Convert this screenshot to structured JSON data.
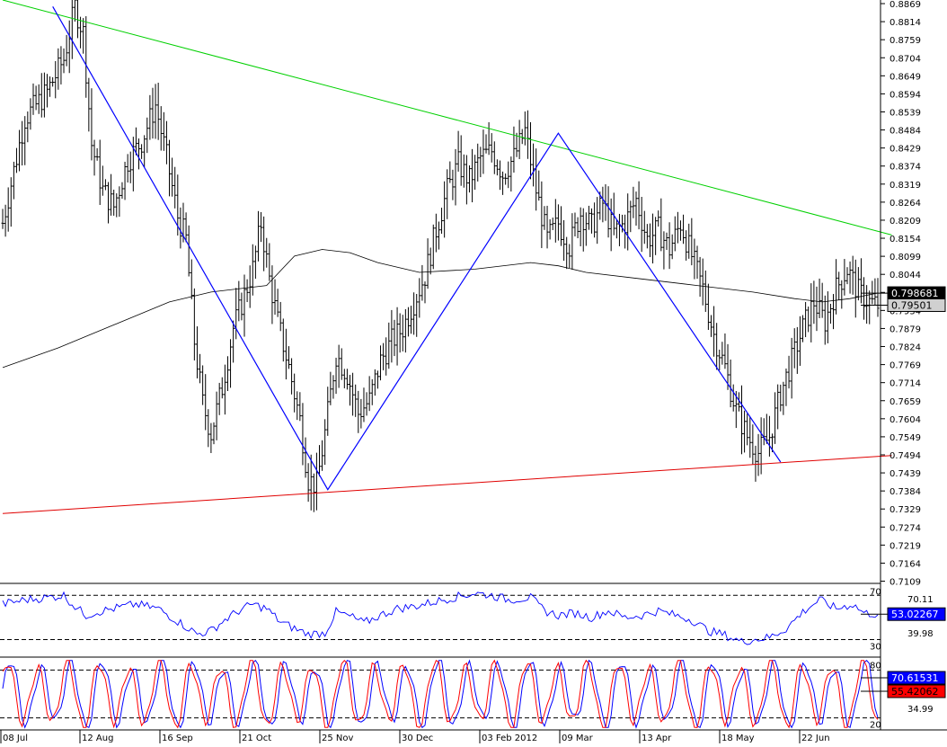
{
  "chart_data": [
    {
      "type": "ohlc",
      "panel": "price",
      "title": "",
      "x_dates": [
        "08 Jul",
        "12 Aug",
        "16 Sep",
        "21 Oct",
        "25 Nov",
        "30 Dec",
        "03 Feb 2012",
        "09 Mar",
        "13 Apr",
        "18 May",
        "22 Jun"
      ],
      "y_ticks": [
        "0.8869",
        "0.8814",
        "0.8759",
        "0.8704",
        "0.8649",
        "0.8594",
        "0.8539",
        "0.8484",
        "0.8429",
        "0.8374",
        "0.8319",
        "0.8264",
        "0.8209",
        "0.8154",
        "0.8099",
        "0.8044",
        "0.7989",
        "0.7934",
        "0.7879",
        "0.7824",
        "0.7769",
        "0.7714",
        "0.7659",
        "0.7604",
        "0.7549",
        "0.7494",
        "0.7439",
        "0.7384",
        "0.7329",
        "0.7274",
        "0.7219",
        "0.7164",
        "0.7109"
      ],
      "ylim": [
        0.7105,
        0.888
      ],
      "close_path": [
        [
          0,
          0.82
        ],
        [
          8,
          0.852
        ],
        [
          16,
          0.86
        ],
        [
          22,
          0.87
        ],
        [
          26,
          0.886
        ],
        [
          29,
          0.878
        ],
        [
          32,
          0.844
        ],
        [
          36,
          0.83
        ],
        [
          40,
          0.825
        ],
        [
          45,
          0.839
        ],
        [
          50,
          0.845
        ],
        [
          55,
          0.856
        ],
        [
          59,
          0.84
        ],
        [
          63,
          0.822
        ],
        [
          66,
          0.815
        ],
        [
          69,
          0.784
        ],
        [
          72,
          0.765
        ],
        [
          75,
          0.756
        ],
        [
          79,
          0.77
        ],
        [
          83,
          0.788
        ],
        [
          87,
          0.798
        ],
        [
          90,
          0.806
        ],
        [
          93,
          0.82
        ],
        [
          96,
          0.803
        ],
        [
          99,
          0.79
        ],
        [
          103,
          0.776
        ],
        [
          107,
          0.76
        ],
        [
          110,
          0.742
        ],
        [
          113,
          0.74
        ],
        [
          116,
          0.756
        ],
        [
          120,
          0.78
        ],
        [
          124,
          0.774
        ],
        [
          128,
          0.762
        ],
        [
          132,
          0.766
        ],
        [
          136,
          0.778
        ],
        [
          140,
          0.784
        ],
        [
          144,
          0.788
        ],
        [
          148,
          0.796
        ],
        [
          152,
          0.804
        ],
        [
          156,
          0.818
        ],
        [
          160,
          0.83
        ],
        [
          164,
          0.838
        ],
        [
          168,
          0.833
        ],
        [
          172,
          0.84
        ],
        [
          176,
          0.842
        ],
        [
          180,
          0.835
        ],
        [
          184,
          0.84
        ],
        [
          188,
          0.848
        ],
        [
          192,
          0.83
        ],
        [
          196,
          0.815
        ],
        [
          200,
          0.82
        ],
        [
          204,
          0.813
        ],
        [
          208,
          0.823
        ],
        [
          212,
          0.819
        ],
        [
          216,
          0.826
        ],
        [
          220,
          0.817
        ],
        [
          224,
          0.82
        ],
        [
          228,
          0.827
        ],
        [
          232,
          0.815
        ],
        [
          236,
          0.818
        ],
        [
          240,
          0.812
        ],
        [
          244,
          0.82
        ],
        [
          248,
          0.81
        ],
        [
          252,
          0.8
        ],
        [
          256,
          0.786
        ],
        [
          260,
          0.776
        ],
        [
          264,
          0.763
        ],
        [
          268,
          0.755
        ],
        [
          272,
          0.75
        ],
        [
          276,
          0.755
        ],
        [
          280,
          0.768
        ],
        [
          284,
          0.778
        ],
        [
          288,
          0.788
        ],
        [
          292,
          0.796
        ],
        [
          296,
          0.79
        ],
        [
          300,
          0.8
        ],
        [
          304,
          0.806
        ],
        [
          308,
          0.799
        ],
        [
          312,
          0.796
        ],
        [
          315,
          0.795
        ]
      ],
      "ma_path": [
        [
          0,
          0.776
        ],
        [
          20,
          0.782
        ],
        [
          40,
          0.789
        ],
        [
          60,
          0.796
        ],
        [
          75,
          0.799
        ],
        [
          95,
          0.801
        ],
        [
          105,
          0.81
        ],
        [
          115,
          0.812
        ],
        [
          125,
          0.811
        ],
        [
          135,
          0.808
        ],
        [
          150,
          0.805
        ],
        [
          170,
          0.806
        ],
        [
          190,
          0.808
        ],
        [
          200,
          0.807
        ],
        [
          210,
          0.805
        ],
        [
          230,
          0.803
        ],
        [
          250,
          0.801
        ],
        [
          270,
          0.799
        ],
        [
          285,
          0.797
        ],
        [
          295,
          0.796
        ],
        [
          305,
          0.797
        ],
        [
          315,
          0.7987
        ]
      ],
      "resistance_line": [
        [
          0,
          0.888
        ],
        [
          320,
          0.8164
        ]
      ],
      "support_line": [
        [
          0,
          0.7315
        ],
        [
          320,
          0.7492
        ]
      ],
      "zigzag": [
        [
          18,
          0.886
        ],
        [
          117,
          0.7388
        ],
        [
          200,
          0.8474
        ],
        [
          280,
          0.7472
        ]
      ],
      "n_bars": 316,
      "price_labels": [
        {
          "text": "0.798681",
          "value": 0.798681,
          "bg": "#000000",
          "color": "#ffffff"
        },
        {
          "text": "0.79501",
          "value": 0.79501,
          "bg": "#d0d0d0",
          "color": "#000000"
        }
      ],
      "colors": {
        "price": "#000000",
        "ma": "#000000",
        "resistance": "#00d000",
        "support": "#e00000",
        "zigzag": "#0000ff"
      }
    },
    {
      "type": "line",
      "panel": "rsi",
      "title": "",
      "levels": [
        {
          "value": 70,
          "label": "70"
        },
        {
          "value": 30,
          "label": "30"
        }
      ],
      "ylim": [
        15,
        80
      ],
      "extreme_labels": [
        "70.11",
        "39.98"
      ],
      "current_label": {
        "text": "53.02267",
        "value": 53.02267,
        "bg": "#0000ff",
        "color": "#ffffff"
      },
      "series": [
        {
          "color": "#0000ff",
          "points": [
            [
              0,
              62
            ],
            [
              8,
              66
            ],
            [
              16,
              68
            ],
            [
              22,
              70
            ],
            [
              26,
              60
            ],
            [
              30,
              52
            ],
            [
              34,
              55
            ],
            [
              40,
              58
            ],
            [
              48,
              62
            ],
            [
              56,
              58
            ],
            [
              64,
              45
            ],
            [
              70,
              35
            ],
            [
              75,
              38
            ],
            [
              80,
              48
            ],
            [
              85,
              56
            ],
            [
              90,
              62
            ],
            [
              95,
              58
            ],
            [
              100,
              46
            ],
            [
              105,
              40
            ],
            [
              110,
              35
            ],
            [
              116,
              36
            ],
            [
              120,
              55
            ],
            [
              126,
              50
            ],
            [
              130,
              45
            ],
            [
              136,
              52
            ],
            [
              142,
              58
            ],
            [
              148,
              60
            ],
            [
              155,
              64
            ],
            [
              162,
              68
            ],
            [
              170,
              72
            ],
            [
              176,
              70
            ],
            [
              182,
              66
            ],
            [
              190,
              68
            ],
            [
              195,
              56
            ],
            [
              200,
              52
            ],
            [
              206,
              54
            ],
            [
              212,
              50
            ],
            [
              218,
              56
            ],
            [
              224,
              50
            ],
            [
              230,
              52
            ],
            [
              236,
              56
            ],
            [
              242,
              52
            ],
            [
              248,
              48
            ],
            [
              254,
              38
            ],
            [
              260,
              34
            ],
            [
              266,
              28
            ],
            [
              270,
              30
            ],
            [
              276,
              32
            ],
            [
              282,
              40
            ],
            [
              288,
              55
            ],
            [
              294,
              66
            ],
            [
              300,
              58
            ],
            [
              306,
              62
            ],
            [
              310,
              54
            ],
            [
              315,
              53
            ]
          ]
        }
      ]
    },
    {
      "type": "line",
      "panel": "stochastic",
      "title": "",
      "levels": [
        {
          "value": 80,
          "label": "80"
        },
        {
          "value": 20,
          "label": "20"
        }
      ],
      "ylim": [
        5,
        95
      ],
      "extreme_labels": [
        "34.99"
      ],
      "current_labels": [
        {
          "text": "70.61531",
          "value": 70.61531,
          "bg": "#0000ff",
          "color": "#ffffff"
        },
        {
          "text": "55.42062",
          "value": 55.42062,
          "bg": "#ff0000",
          "color": "#000000"
        }
      ],
      "cycle_period": 11,
      "series": [
        {
          "color": "#0000ff",
          "phase": 0
        },
        {
          "color": "#ff0000",
          "phase": 1.2
        }
      ]
    }
  ]
}
